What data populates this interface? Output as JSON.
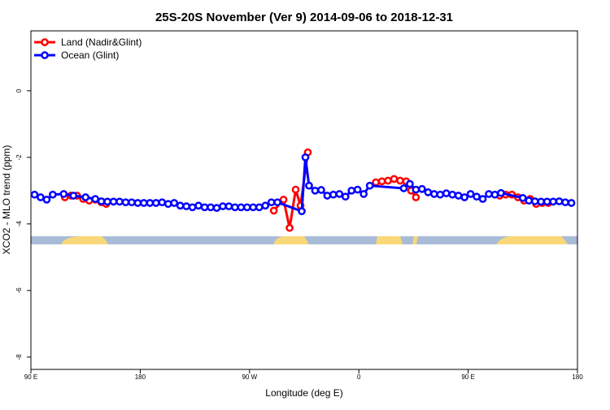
{
  "chart_data": {
    "type": "line",
    "title": "25S-20S November (Ver 9)   2014-09-06 to 2018-12-31",
    "x_label": "Longitude (deg E)",
    "y_label": "XCO2 - MLO trend (ppm)",
    "xlim": [
      90,
      540
    ],
    "ylim": [
      -8.37,
      1.8
    ],
    "xticks": [
      {
        "value": 90,
        "label": "90 E"
      },
      180,
      {
        "value": 270,
        "label": "90 W"
      },
      {
        "value": 360,
        "label": "0"
      },
      {
        "value": 450,
        "label": "90 E"
      },
      {
        "value": 540,
        "label": "180"
      }
    ],
    "yticks": [
      0,
      -2,
      -4,
      -6,
      -8
    ],
    "legend": "top-left",
    "series": [
      {
        "name": "Land (Nadir&Glint)",
        "color": "#ff0000",
        "x": [
          118,
          123,
          128,
          133,
          138,
          143,
          148,
          152,
          220,
          290,
          298,
          303,
          308,
          312,
          318,
          345,
          374,
          379,
          384,
          389,
          394,
          399,
          403,
          407,
          440,
          476,
          481,
          486,
          491,
          496,
          501,
          506,
          511,
          516
        ],
        "values": [
          -3.2,
          -3.15,
          -3.15,
          -3.25,
          -3.3,
          -3.27,
          -3.35,
          -3.4,
          null,
          -3.6,
          -3.27,
          -4.12,
          -2.97,
          -3.45,
          -1.85,
          null,
          -2.75,
          -2.72,
          -2.7,
          -2.65,
          -2.7,
          -2.72,
          -3.0,
          -3.2,
          null,
          -3.15,
          -3.12,
          -3.12,
          -3.2,
          -3.3,
          -3.25,
          -3.4,
          -3.37,
          -3.37
        ]
      },
      {
        "name": "Ocean (Glint)",
        "color": "#0000ff",
        "x": [
          93,
          98,
          103,
          108,
          117,
          125,
          135,
          143,
          148,
          153,
          158,
          163,
          168,
          173,
          178,
          183,
          188,
          193,
          198,
          203,
          208,
          213,
          218,
          223,
          228,
          233,
          238,
          243,
          248,
          253,
          258,
          263,
          268,
          273,
          278,
          283,
          288,
          293,
          313,
          316,
          319,
          324,
          329,
          334,
          339,
          344,
          349,
          354,
          359,
          364,
          369,
          397,
          402,
          407,
          412,
          417,
          422,
          427,
          432,
          437,
          442,
          447,
          452,
          457,
          462,
          467,
          472,
          477,
          495,
          500,
          505,
          510,
          515,
          520,
          525,
          530,
          535
        ],
        "values": [
          -3.12,
          -3.2,
          -3.27,
          -3.12,
          -3.1,
          -3.15,
          -3.2,
          -3.25,
          -3.32,
          -3.33,
          -3.33,
          -3.33,
          -3.35,
          -3.35,
          -3.37,
          -3.37,
          -3.37,
          -3.37,
          -3.35,
          -3.4,
          -3.37,
          -3.45,
          -3.47,
          -3.5,
          -3.45,
          -3.5,
          -3.5,
          -3.52,
          -3.47,
          -3.47,
          -3.5,
          -3.5,
          -3.5,
          -3.5,
          -3.5,
          -3.45,
          -3.35,
          -3.35,
          -3.62,
          -2.0,
          -2.85,
          -3.0,
          -2.98,
          -3.15,
          -3.12,
          -3.1,
          -3.18,
          -3.0,
          -2.97,
          -3.1,
          -2.85,
          -2.93,
          -2.8,
          -2.97,
          -2.95,
          -3.05,
          -3.1,
          -3.12,
          -3.08,
          -3.12,
          -3.15,
          -3.2,
          -3.1,
          -3.18,
          -3.25,
          -3.1,
          -3.12,
          -3.07,
          -3.22,
          -3.3,
          -3.32,
          -3.33,
          -3.33,
          -3.33,
          -3.32,
          -3.35,
          -3.37
        ]
      }
    ]
  }
}
